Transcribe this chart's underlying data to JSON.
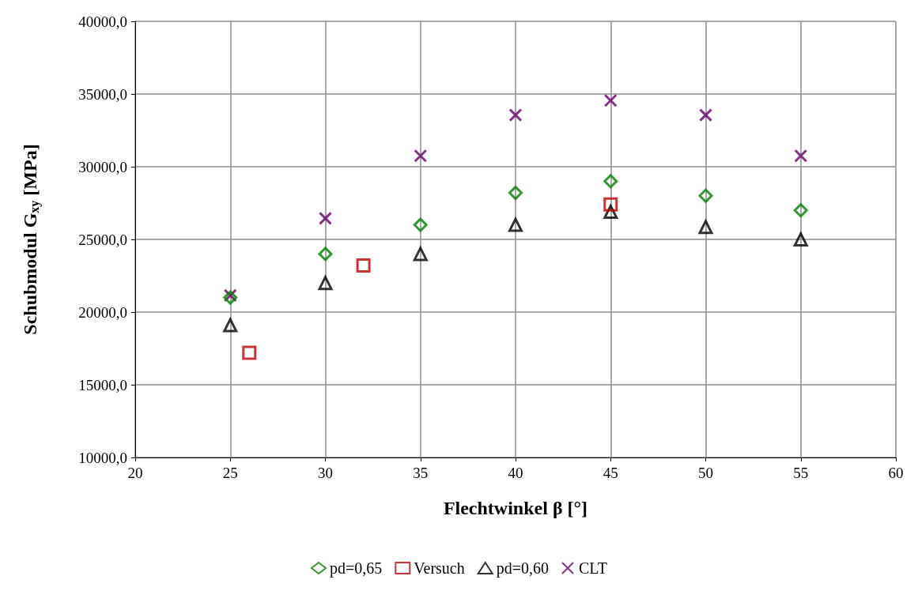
{
  "chart_data": {
    "type": "scatter",
    "xlabel": "Flechtwinkel β [°]",
    "ylabel": "Schubmodul G$_{xy}$ [MPa]",
    "xlim": [
      20,
      60
    ],
    "xticks": [
      20,
      25,
      30,
      35,
      40,
      45,
      50,
      55,
      60
    ],
    "ylim": [
      10000,
      40000
    ],
    "yticks": [
      {
        "value": 10000,
        "label": "10000,0"
      },
      {
        "value": 15000,
        "label": "15000,0"
      },
      {
        "value": 20000,
        "label": "20000,0"
      },
      {
        "value": 25000,
        "label": "25000,0"
      },
      {
        "value": 30000,
        "label": "30000,0"
      },
      {
        "value": 35000,
        "label": "35000,0"
      },
      {
        "value": 40000,
        "label": "40000,0"
      }
    ],
    "grid": true,
    "legend": "bottom",
    "series": [
      {
        "name": "pd=0,65",
        "color": "#008000",
        "marker": "diamond",
        "x": [
          25,
          30,
          35,
          40,
          45,
          50,
          55
        ],
        "values": [
          21000,
          24000,
          26000,
          28200,
          29000,
          28000,
          27000
        ]
      },
      {
        "name": "Versuch",
        "color": "#c00000",
        "marker": "square",
        "x": [
          26,
          32,
          45
        ],
        "values": [
          17200,
          23200,
          27400
        ]
      },
      {
        "name": "pd=0,60",
        "color": "#000000",
        "marker": "triangle",
        "x": [
          25,
          30,
          35,
          40,
          45,
          50,
          55
        ],
        "values": [
          19100,
          22000,
          24000,
          26000,
          26900,
          25850,
          25000
        ]
      },
      {
        "name": "CLT",
        "color": "#660066",
        "marker": "cross",
        "x": [
          25,
          30,
          35,
          40,
          45,
          50,
          55
        ],
        "values": [
          21150,
          26450,
          30750,
          33550,
          34550,
          33550,
          30750
        ]
      }
    ]
  }
}
